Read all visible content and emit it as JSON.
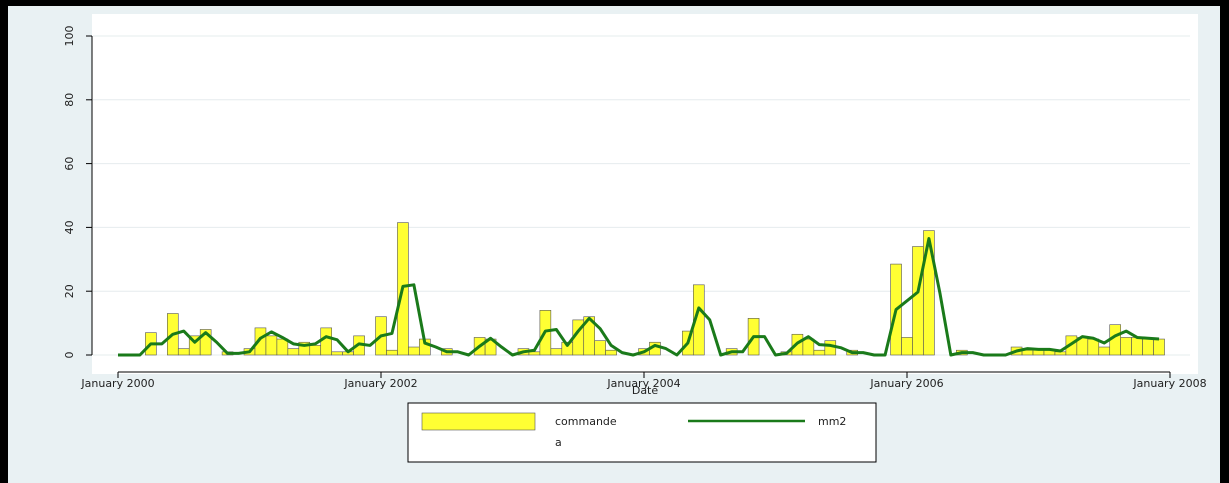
{
  "chart_data": {
    "type": "bar_line",
    "x": [
      "2000-01",
      "2000-02",
      "2000-03",
      "2000-04",
      "2000-05",
      "2000-06",
      "2000-07",
      "2000-08",
      "2000-09",
      "2000-10",
      "2000-11",
      "2000-12",
      "2001-01",
      "2001-02",
      "2001-03",
      "2001-04",
      "2001-05",
      "2001-06",
      "2001-07",
      "2001-08",
      "2001-09",
      "2001-10",
      "2001-11",
      "2001-12",
      "2002-01",
      "2002-02",
      "2002-03",
      "2002-04",
      "2002-05",
      "2002-06",
      "2002-07",
      "2002-08",
      "2002-09",
      "2002-10",
      "2002-11",
      "2002-12",
      "2003-01",
      "2003-02",
      "2003-03",
      "2003-04",
      "2003-05",
      "2003-06",
      "2003-07",
      "2003-08",
      "2003-09",
      "2003-10",
      "2003-11",
      "2003-12",
      "2004-01",
      "2004-02",
      "2004-03",
      "2004-04",
      "2004-05",
      "2004-06",
      "2004-07",
      "2004-08",
      "2004-09",
      "2004-10",
      "2004-11",
      "2004-12",
      "2005-01",
      "2005-02",
      "2005-03",
      "2005-04",
      "2005-05",
      "2005-06",
      "2005-07",
      "2005-08",
      "2005-09",
      "2005-10",
      "2005-11",
      "2005-12",
      "2006-01",
      "2006-02",
      "2006-03",
      "2006-04",
      "2006-05",
      "2006-06",
      "2006-07",
      "2006-08",
      "2006-09",
      "2006-10",
      "2006-11",
      "2006-12",
      "2007-01",
      "2007-02",
      "2007-03",
      "2007-04",
      "2007-05",
      "2007-06",
      "2007-07",
      "2007-08",
      "2007-09",
      "2007-10",
      "2007-11",
      "2007-12"
    ],
    "series": [
      {
        "name": "commande",
        "kind": "bar",
        "color": "#ffff33",
        "values": [
          0,
          0,
          0,
          7,
          0,
          13,
          2,
          6,
          8,
          0,
          1,
          0,
          2,
          8.5,
          6,
          5,
          2,
          4,
          3,
          8.5,
          1,
          1,
          6,
          0,
          12,
          1.5,
          41.5,
          2.5,
          5,
          0,
          2,
          0,
          0,
          5.5,
          5,
          0,
          0,
          2,
          1,
          14,
          2,
          4,
          11,
          12,
          4.5,
          1.5,
          0,
          0,
          2,
          4,
          0,
          0,
          7.5,
          22,
          0,
          0,
          2,
          0,
          11.5,
          0,
          0,
          1,
          6.5,
          5,
          1.5,
          4.5,
          0,
          1.5,
          0,
          0,
          0,
          28.5,
          5.5,
          34,
          39,
          0,
          0,
          1.5,
          0,
          0,
          0,
          0,
          2.5,
          1.5,
          2,
          1.5,
          1,
          6,
          5.5,
          5,
          2.5,
          9.5,
          5.5,
          5.5,
          5,
          5
        ]
      },
      {
        "name": "mm2",
        "kind": "line",
        "color": "#1a7a1a",
        "values": [
          0,
          0,
          0,
          3.5,
          3.5,
          6.5,
          7.5,
          4,
          7,
          4,
          0.5,
          0.5,
          1,
          5.25,
          7.25,
          5.5,
          3.5,
          3,
          3.5,
          5.75,
          4.75,
          1,
          3.5,
          3,
          6,
          6.75,
          21.5,
          22,
          3.75,
          2.5,
          1,
          1,
          0,
          2.75,
          5.25,
          2.5,
          0,
          1,
          1.5,
          7.5,
          8,
          3,
          7.5,
          11.5,
          8.25,
          3,
          0.75,
          0,
          1,
          3,
          2,
          0,
          3.75,
          14.75,
          11,
          0,
          1,
          1,
          5.75,
          5.75,
          0,
          0.5,
          3.75,
          5.75,
          3.25,
          3,
          2.25,
          0.75,
          0.75,
          0,
          0,
          14.25,
          17,
          19.75,
          36.5,
          19.5,
          0,
          0.75,
          0.75,
          0,
          0,
          0,
          1.25,
          2,
          1.75,
          1.75,
          1.25,
          3.5,
          5.75,
          5.25,
          3.75,
          6,
          7.5,
          5.5,
          5.25,
          5
        ]
      }
    ],
    "legend_note": "a",
    "xlabel": "Date",
    "xlim": [
      "2000-01",
      "2008-01"
    ],
    "xticks": [
      {
        "value": "2000-01",
        "label": "January 2000"
      },
      {
        "value": "2002-01",
        "label": "January 2002"
      },
      {
        "value": "2004-01",
        "label": "January 2004"
      },
      {
        "value": "2006-01",
        "label": "January 2006"
      },
      {
        "value": "2008-01",
        "label": "January 2008"
      }
    ],
    "ylim": [
      0,
      100
    ],
    "yticks": [
      0,
      20,
      40,
      60,
      80,
      100
    ],
    "grid": true
  }
}
